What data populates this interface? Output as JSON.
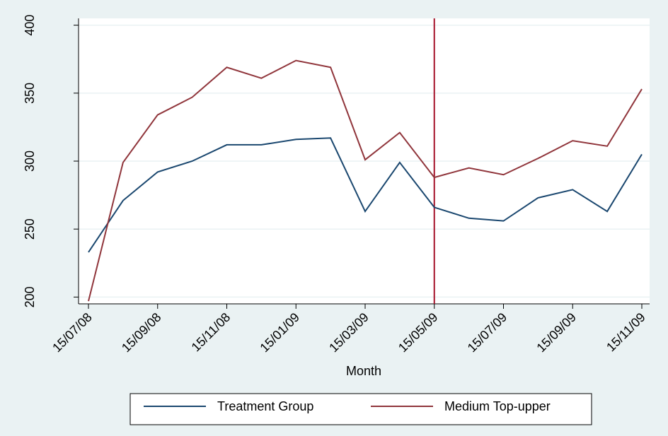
{
  "chart_data": {
    "type": "line",
    "x_label": "Month",
    "categories": [
      "15/07/08",
      null,
      "15/09/08",
      null,
      "15/11/08",
      null,
      "15/01/09",
      null,
      "15/03/09",
      null,
      "15/05/09",
      null,
      "15/07/09",
      null,
      "15/09/09",
      null,
      "15/11/09"
    ],
    "series": [
      {
        "name": "Treatment Group",
        "color": "#1a476f",
        "values": [
          233,
          271,
          292,
          300,
          312,
          312,
          316,
          317,
          263,
          299,
          266,
          258,
          256,
          273,
          279,
          263,
          305
        ]
      },
      {
        "name": "Medium Top-upper",
        "color": "#90353b",
        "values": [
          197,
          299,
          334,
          347,
          369,
          361,
          374,
          369,
          301,
          321,
          288,
          295,
          290,
          302,
          315,
          311,
          353
        ]
      }
    ],
    "ylim": [
      195,
      405
    ],
    "yticks": [
      200,
      250,
      300,
      350,
      400
    ],
    "grid": true,
    "xline": {
      "x": "15/05/09",
      "color": "#a5122a"
    },
    "legend": "bottom"
  }
}
